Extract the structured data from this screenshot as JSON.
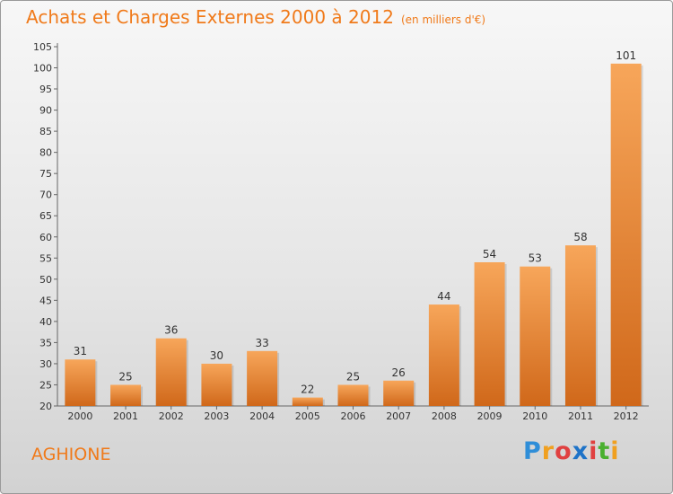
{
  "title": "Achats et Charges Externes 2000 à 2012",
  "subtitle": "(en milliers d'€)",
  "commune": "AGHIONE",
  "logo": {
    "text": "Proxiti",
    "letters": [
      "P",
      "r",
      "o",
      "x",
      "i",
      "t",
      "i"
    ],
    "colors": [
      "#2f8ed8",
      "#f0a020",
      "#e04040",
      "#1e73c8",
      "#e04040",
      "#49b030",
      "#f0a020"
    ]
  },
  "colors": {
    "bar_top": "#f7a65a",
    "bar_bottom": "#d0681a",
    "title": "#f07a1a"
  },
  "chart_data": {
    "type": "bar",
    "categories": [
      "2000",
      "2001",
      "2002",
      "2003",
      "2004",
      "2005",
      "2006",
      "2007",
      "2008",
      "2009",
      "2010",
      "2011",
      "2012"
    ],
    "values": [
      31,
      25,
      36,
      30,
      33,
      22,
      25,
      26,
      44,
      54,
      53,
      58,
      101
    ],
    "ylim": [
      20,
      105
    ],
    "yticks": [
      20,
      25,
      30,
      35,
      40,
      45,
      50,
      55,
      60,
      65,
      70,
      75,
      80,
      85,
      90,
      95,
      100,
      105
    ],
    "grid": false,
    "data_labels": true
  }
}
